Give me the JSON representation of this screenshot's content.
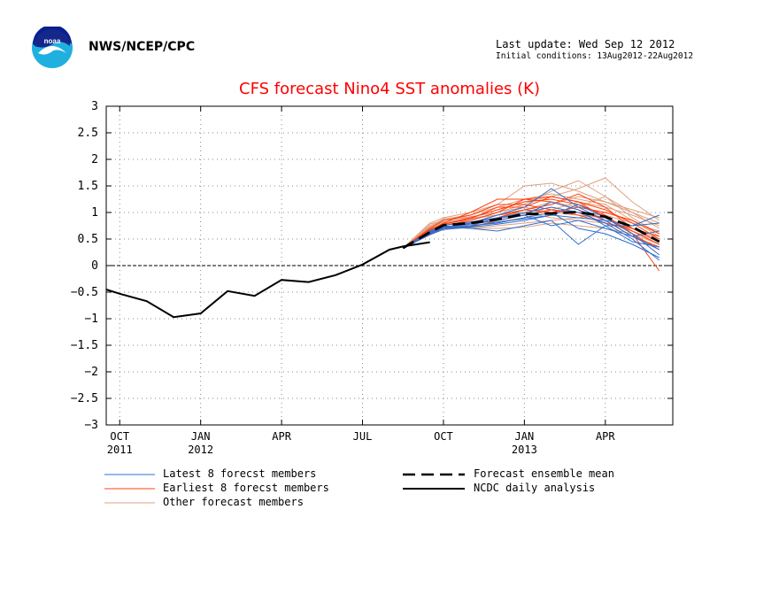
{
  "header": {
    "agency": "NWS/NCEP/CPC",
    "last_update": "Last update: Wed Sep 12 2012",
    "initial_conditions": "Initial conditions: 13Aug2012-22Aug2012"
  },
  "legend": {
    "latest": "Latest 8 forecst members",
    "earliest": "Earliest 8 forecst members",
    "other": "Other forecast members",
    "mean": "Forecast ensemble mean",
    "analysis": "NCDC daily analysis"
  },
  "colors": {
    "latest": "#2f6fd0",
    "earliest": "#ff4010",
    "other": "#e0a080",
    "title": "#ff0000"
  },
  "chart_data": {
    "type": "line",
    "title": "CFS forecast Nino4 SST anomalies (K)",
    "ylim": [
      -3,
      3
    ],
    "yticks": [
      "3",
      "2.5",
      "2",
      "1.5",
      "1",
      "0.5",
      "0",
      "−0.5",
      "−1",
      "−1.5",
      "−2",
      "−2.5",
      "−3"
    ],
    "xlim_months": [
      -0.5,
      20.5
    ],
    "xticks": [
      {
        "m": 0,
        "label": "OCT",
        "year": "2011"
      },
      {
        "m": 3,
        "label": "JAN",
        "year": "2012"
      },
      {
        "m": 6,
        "label": "APR",
        "year": ""
      },
      {
        "m": 9,
        "label": "JUL",
        "year": ""
      },
      {
        "m": 12,
        "label": "OCT",
        "year": ""
      },
      {
        "m": 15,
        "label": "JAN",
        "year": "2013"
      },
      {
        "m": 18,
        "label": "APR",
        "year": ""
      }
    ],
    "grid": true,
    "series": [
      {
        "name": "NCDC daily analysis",
        "style": "analysis",
        "x": [
          -0.5,
          0,
          1,
          2,
          3,
          4,
          5,
          6,
          7,
          8,
          9,
          10,
          10.5,
          11.5
        ],
        "y": [
          -0.45,
          -0.53,
          -0.67,
          -0.97,
          -0.9,
          -0.48,
          -0.57,
          -0.27,
          -0.31,
          -0.18,
          0.02,
          0.3,
          0.36,
          0.44
        ]
      },
      {
        "name": "Forecast ensemble mean",
        "style": "mean",
        "x": [
          10.5,
          11.5,
          12,
          13,
          14,
          15,
          16,
          17,
          18,
          19,
          20
        ],
        "y": [
          0.33,
          0.63,
          0.76,
          0.8,
          0.87,
          0.97,
          0.98,
          1.01,
          0.92,
          0.73,
          0.45
        ]
      }
    ],
    "members": {
      "x": [
        10.5,
        11.5,
        12,
        13,
        14,
        15,
        16,
        17,
        18,
        19,
        20
      ],
      "earliest": [
        [
          0.33,
          0.68,
          0.78,
          0.9,
          1.05,
          1.2,
          1.25,
          1.15,
          0.95,
          0.6,
          0.3
        ],
        [
          0.33,
          0.6,
          0.75,
          0.85,
          1.0,
          1.25,
          1.3,
          1.2,
          1.05,
          0.8,
          0.5
        ],
        [
          0.33,
          0.7,
          0.85,
          0.95,
          1.15,
          1.15,
          1.05,
          1.0,
          0.9,
          0.6,
          -0.1
        ],
        [
          0.33,
          0.62,
          0.7,
          0.75,
          0.9,
          1.05,
          1.15,
          1.35,
          1.1,
          0.7,
          0.45
        ],
        [
          0.33,
          0.66,
          0.8,
          1.0,
          1.25,
          1.25,
          1.2,
          1.05,
          0.85,
          0.55,
          0.35
        ],
        [
          0.33,
          0.6,
          0.72,
          0.8,
          0.95,
          1.05,
          1.0,
          1.1,
          1.0,
          0.85,
          0.6
        ],
        [
          0.33,
          0.64,
          0.78,
          0.88,
          1.1,
          1.1,
          1.3,
          1.2,
          0.9,
          0.65,
          0.4
        ],
        [
          0.33,
          0.58,
          0.7,
          0.72,
          0.85,
          0.95,
          1.05,
          0.95,
          0.8,
          0.7,
          0.55
        ]
      ],
      "latest": [
        [
          0.33,
          0.62,
          0.72,
          0.75,
          0.8,
          0.9,
          1.0,
          0.7,
          0.6,
          0.4,
          0.15
        ],
        [
          0.33,
          0.6,
          0.7,
          0.8,
          0.95,
          1.1,
          1.45,
          1.1,
          0.85,
          0.55,
          0.3
        ],
        [
          0.33,
          0.65,
          0.75,
          0.7,
          0.65,
          0.75,
          0.85,
          0.4,
          0.75,
          0.75,
          0.95
        ],
        [
          0.33,
          0.58,
          0.68,
          0.72,
          0.78,
          0.85,
          0.95,
          1.15,
          0.9,
          0.6,
          0.2
        ],
        [
          0.33,
          0.63,
          0.7,
          0.75,
          0.9,
          0.95,
          0.75,
          0.85,
          0.7,
          0.55,
          0.65
        ],
        [
          0.33,
          0.6,
          0.76,
          0.82,
          0.9,
          1.0,
          1.1,
          1.0,
          0.8,
          0.5,
          0.1
        ],
        [
          0.33,
          0.62,
          0.7,
          0.74,
          0.82,
          0.88,
          0.95,
          0.9,
          0.85,
          0.75,
          0.8
        ],
        [
          0.33,
          0.64,
          0.72,
          0.78,
          0.85,
          0.95,
          1.2,
          1.05,
          0.75,
          0.45,
          0.35
        ]
      ],
      "other": [
        [
          0.33,
          0.8,
          0.9,
          1.0,
          1.15,
          1.5,
          1.55,
          1.4,
          1.2,
          1.0,
          0.7
        ],
        [
          0.33,
          0.75,
          0.85,
          0.9,
          1.05,
          1.2,
          1.3,
          1.45,
          1.65,
          1.2,
          0.85
        ],
        [
          0.33,
          0.7,
          0.78,
          0.82,
          0.9,
          1.05,
          1.2,
          1.1,
          1.3,
          0.9,
          0.6
        ],
        [
          0.33,
          0.68,
          0.8,
          0.85,
          1.0,
          1.1,
          1.0,
          0.95,
          0.9,
          0.7,
          0.5
        ],
        [
          0.33,
          0.72,
          0.82,
          0.88,
          0.95,
          1.0,
          0.9,
          0.85,
          0.8,
          0.65,
          0.45
        ],
        [
          0.33,
          0.66,
          0.75,
          0.7,
          0.75,
          0.8,
          0.85,
          0.9,
          1.0,
          0.85,
          0.6
        ],
        [
          0.33,
          0.7,
          0.8,
          0.75,
          0.82,
          0.9,
          1.05,
          1.2,
          1.1,
          0.95,
          0.75
        ],
        [
          0.33,
          0.74,
          0.88,
          0.95,
          1.1,
          1.25,
          1.35,
          1.25,
          1.15,
          0.85,
          0.55
        ],
        [
          0.33,
          0.64,
          0.72,
          0.7,
          0.7,
          0.72,
          0.8,
          0.75,
          0.7,
          0.6,
          0.4
        ],
        [
          0.33,
          0.78,
          0.85,
          0.92,
          1.0,
          1.15,
          1.4,
          1.6,
          1.3,
          1.0,
          0.8
        ],
        [
          0.33,
          0.68,
          0.76,
          0.8,
          0.88,
          0.98,
          1.1,
          1.0,
          0.95,
          0.8,
          0.65
        ],
        [
          0.33,
          0.72,
          0.86,
          0.9,
          0.95,
          1.05,
          1.15,
          1.3,
          1.2,
          1.05,
          0.9
        ]
      ]
    }
  }
}
